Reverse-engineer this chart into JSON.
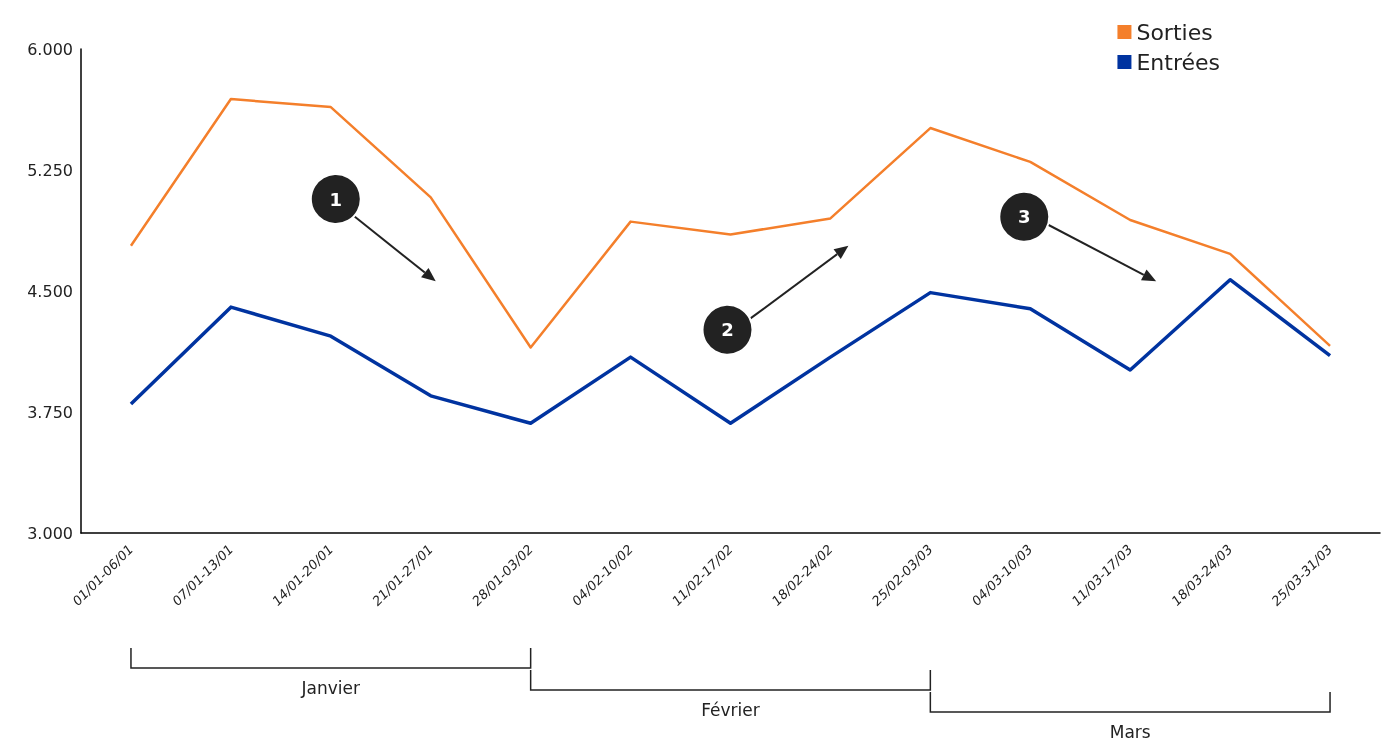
{
  "chart_data": {
    "type": "line",
    "categories": [
      "01/01-06/01",
      "07/01-13/01",
      "14/01-20/01",
      "21/01-27/01",
      "28/01-03/02",
      "04/02-10/02",
      "11/02-17/02",
      "18/02-24/02",
      "25/02-03/03",
      "04/03-10/03",
      "11/03-17/03",
      "18/03-24/03",
      "25/03-31/03"
    ],
    "series": [
      {
        "name": "Sorties",
        "color": "#f47f2b",
        "values": [
          4780,
          5690,
          5640,
          5080,
          4150,
          4930,
          4850,
          4950,
          5510,
          5300,
          4940,
          4730,
          4160
        ]
      },
      {
        "name": "Entrées",
        "color": "#0033a0",
        "values": [
          3800,
          4400,
          4220,
          3850,
          3680,
          4090,
          3680,
          4090,
          4490,
          4390,
          4010,
          4570,
          4100
        ]
      }
    ],
    "ylim": [
      3000,
      6000
    ],
    "yticks": [
      {
        "value": 3000,
        "label": "3.000"
      },
      {
        "value": 3750,
        "label": "3.750"
      },
      {
        "value": 4500,
        "label": "4.500"
      },
      {
        "value": 5250,
        "label": "5.250"
      },
      {
        "value": 6000,
        "label": "6.000"
      }
    ],
    "grid": false,
    "legend": "top right",
    "marker": "none",
    "line_style": "solid",
    "annotations": [
      "1",
      "2",
      "3",
      "Janvier",
      "Février",
      "Mars"
    ]
  }
}
